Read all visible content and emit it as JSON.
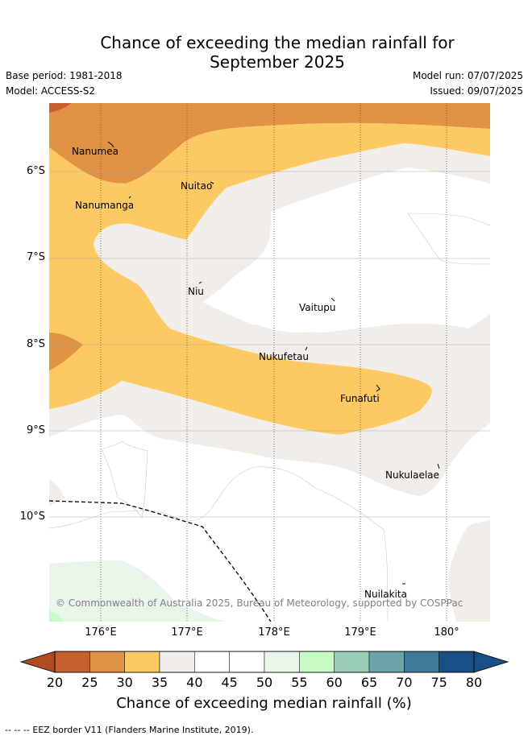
{
  "title_line1": "Chance of exceeding the median rainfall for",
  "title_line2": "September 2025",
  "base_period": "Base period: 1981-2018",
  "model": "Model: ACCESS-S2",
  "model_run": "Model run: 07/07/2025",
  "issued": "Issued: 09/07/2025",
  "copyright": "© Commonwealth of Australia 2025, Bureau of Meteorology, supported by COSPPac",
  "lat_labels": [
    "6°S",
    "7°S",
    "8°S",
    "9°S",
    "10°S"
  ],
  "lon_labels": [
    "176°E",
    "177°E",
    "178°E",
    "179°E",
    "180°"
  ],
  "islands": [
    {
      "name": "Nanumea"
    },
    {
      "name": "Nuitao"
    },
    {
      "name": "Nanumanga"
    },
    {
      "name": "Niu"
    },
    {
      "name": "Vaitupu"
    },
    {
      "name": "Nukufetau"
    },
    {
      "name": "Funafuti"
    },
    {
      "name": "Nukulaelae"
    },
    {
      "name": "Nuilakita"
    }
  ],
  "colorbar": {
    "title": "Chance of exceeding median rainfall (%)",
    "ticks": [
      "20",
      "25",
      "30",
      "35",
      "40",
      "45",
      "50",
      "55",
      "60",
      "65",
      "70",
      "75",
      "80"
    ],
    "colors": [
      "#b04a22",
      "#c6602e",
      "#e09245",
      "#fdc962",
      "#f1ede8",
      "#ffffff",
      "#ffffff",
      "#e9f5e8",
      "#c6fbc6",
      "#9bccb8",
      "#6ba3a6",
      "#3d7a9a",
      "#184f86"
    ]
  },
  "legend": {
    "symbol": "--  --  --",
    "text": "EEZ border V11 (Flanders Marine Institute, 2019)."
  }
}
